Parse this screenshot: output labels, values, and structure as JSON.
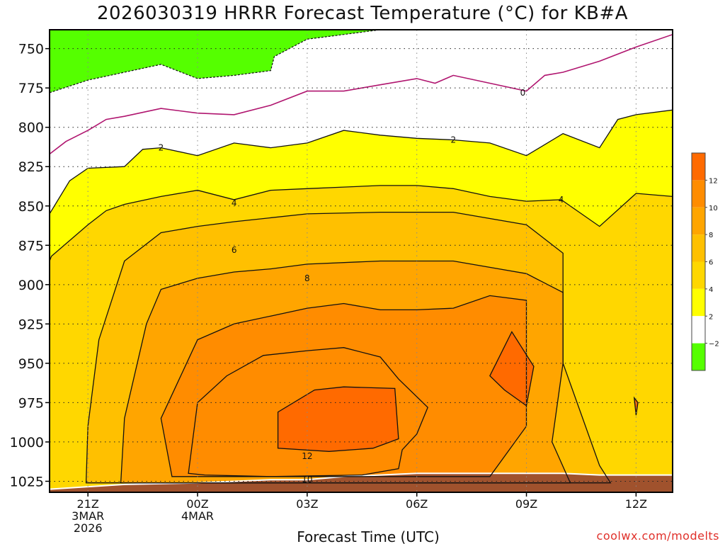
{
  "title": "2026030319 HRRR Forecast Temperature (°C) for KB#A",
  "credit": "coolwx.com/modelts",
  "chart_data": {
    "type": "contour",
    "xlabel": "Forecast Time (UTC)",
    "ylabel": "",
    "y_axis": "Pressure (mb), inverted",
    "ylim": [
      1032,
      738
    ],
    "xlim": [
      19.95,
      37.0
    ],
    "x_ticks": [
      {
        "x": 21,
        "line1": "21Z",
        "line2": "3MAR",
        "line3": "2026"
      },
      {
        "x": 24,
        "line1": "00Z",
        "line2": "4MAR",
        "line3": ""
      },
      {
        "x": 27,
        "line1": "03Z",
        "line2": "",
        "line3": ""
      },
      {
        "x": 30,
        "line1": "06Z",
        "line2": "",
        "line3": ""
      },
      {
        "x": 33,
        "line1": "09Z",
        "line2": "",
        "line3": ""
      },
      {
        "x": 36,
        "line1": "12Z",
        "line2": "",
        "line3": ""
      }
    ],
    "y_ticks": [
      750,
      775,
      800,
      825,
      850,
      875,
      900,
      925,
      950,
      975,
      1000,
      1025
    ],
    "grid": true,
    "colorbar": {
      "placement": "right",
      "bins": [
        {
          "range": "< -2",
          "color": "#55ff00"
        },
        {
          "range": "-2 to 2",
          "color": "#ffffff"
        },
        {
          "range": "2 to 4",
          "color": "#ffff00"
        },
        {
          "range": "4 to 6",
          "color": "#ffd700"
        },
        {
          "range": "6 to 8",
          "color": "#ffc000"
        },
        {
          "range": "8 to 10",
          "color": "#ffa500"
        },
        {
          "range": "10 to 12",
          "color": "#ff8c00"
        },
        {
          "range": "> 12",
          "color": "#ff6a00"
        }
      ],
      "tick_labels": [
        "−2",
        "2",
        "4",
        "6",
        "8",
        "10",
        "12"
      ]
    },
    "ground_color": "#a0522d",
    "contour_labels": [
      {
        "value": "0",
        "x": 32.9,
        "p": 778
      },
      {
        "value": "2",
        "x": 23.0,
        "p": 813
      },
      {
        "value": "2",
        "x": 31.0,
        "p": 808
      },
      {
        "value": "4",
        "x": 25.0,
        "p": 848
      },
      {
        "value": "4",
        "x": 33.95,
        "p": 846
      },
      {
        "value": "6",
        "x": 25.0,
        "p": 878
      },
      {
        "value": "8",
        "x": 27.0,
        "p": 896
      },
      {
        "value": "10",
        "x": 27.0,
        "p": 1024
      },
      {
        "value": "12",
        "x": 27.0,
        "p": 1009
      }
    ],
    "isotherms": {
      "minus2": [
        [
          19.95,
          778
        ],
        [
          21,
          770
        ],
        [
          22,
          765
        ],
        [
          23,
          760
        ],
        [
          24,
          769
        ],
        [
          25,
          767
        ],
        [
          26,
          764
        ],
        [
          26.1,
          755
        ],
        [
          27,
          744
        ],
        [
          28,
          741
        ],
        [
          29,
          737
        ],
        [
          30,
          735
        ],
        [
          31,
          735
        ],
        [
          32,
          735
        ],
        [
          33,
          735
        ],
        [
          34,
          735
        ],
        [
          35,
          735
        ],
        [
          36,
          735
        ],
        [
          37,
          735
        ]
      ],
      "zero": [
        [
          19.95,
          817
        ],
        [
          20.4,
          809
        ],
        [
          21,
          802
        ],
        [
          21.5,
          795
        ],
        [
          22,
          793
        ],
        [
          23,
          788
        ],
        [
          24,
          791
        ],
        [
          25,
          792
        ],
        [
          26,
          786
        ],
        [
          27,
          777
        ],
        [
          28,
          777
        ],
        [
          29,
          773
        ],
        [
          30,
          769
        ],
        [
          30.5,
          772
        ],
        [
          31,
          767
        ],
        [
          32,
          772
        ],
        [
          33,
          777
        ],
        [
          33.5,
          767
        ],
        [
          34,
          765
        ],
        [
          35,
          758
        ],
        [
          36,
          749
        ],
        [
          37,
          741
        ]
      ],
      "two": [
        [
          19.95,
          855
        ],
        [
          20.5,
          834
        ],
        [
          21,
          826
        ],
        [
          22,
          825
        ],
        [
          22.5,
          814
        ],
        [
          23,
          813
        ],
        [
          24,
          818
        ],
        [
          25,
          810
        ],
        [
          26,
          813
        ],
        [
          27,
          810
        ],
        [
          28,
          802
        ],
        [
          29,
          805
        ],
        [
          30,
          807
        ],
        [
          31,
          808
        ],
        [
          32,
          810
        ],
        [
          33,
          818
        ],
        [
          34,
          804
        ],
        [
          35,
          813
        ],
        [
          35.5,
          795
        ],
        [
          36,
          792
        ],
        [
          37,
          789
        ]
      ],
      "four": [
        [
          19.95,
          885
        ],
        [
          20,
          882
        ],
        [
          21,
          862
        ],
        [
          21.5,
          853
        ],
        [
          22,
          849
        ],
        [
          23,
          844
        ],
        [
          24,
          840
        ],
        [
          25,
          846
        ],
        [
          26,
          840
        ],
        [
          27,
          839
        ],
        [
          28,
          838
        ],
        [
          29,
          837
        ],
        [
          30,
          837
        ],
        [
          31,
          839
        ],
        [
          32,
          844
        ],
        [
          33,
          847
        ],
        [
          33.95,
          846
        ],
        [
          35,
          863
        ],
        [
          36,
          842
        ],
        [
          37,
          844
        ]
      ]
    },
    "ground_line": [
      [
        19.95,
        1030
      ],
      [
        22,
        1027
      ],
      [
        24,
        1026
      ],
      [
        26,
        1024
      ],
      [
        27,
        1024
      ],
      [
        28,
        1022
      ],
      [
        29,
        1021
      ],
      [
        30,
        1020
      ],
      [
        31,
        1020
      ],
      [
        32,
        1020
      ],
      [
        33,
        1020
      ],
      [
        34,
        1020
      ],
      [
        35,
        1021
      ],
      [
        36,
        1021
      ],
      [
        37,
        1021
      ]
    ],
    "closed_contours": [
      {
        "value": 6,
        "pts": [
          [
            20.95,
            1026
          ],
          [
            21,
            990
          ],
          [
            21.3,
            935
          ],
          [
            22,
            885
          ],
          [
            23,
            867
          ],
          [
            24,
            863
          ],
          [
            25,
            860
          ],
          [
            27,
            855
          ],
          [
            29,
            854
          ],
          [
            31,
            854
          ],
          [
            33,
            862
          ],
          [
            34,
            880
          ],
          [
            34,
            950
          ],
          [
            35,
            1015
          ],
          [
            35.3,
            1026
          ]
        ]
      },
      {
        "value": 8,
        "pts": [
          [
            21.9,
            1026
          ],
          [
            22,
            985
          ],
          [
            22.6,
            925
          ],
          [
            23,
            903
          ],
          [
            24,
            896
          ],
          [
            25,
            892
          ],
          [
            26,
            890
          ],
          [
            27,
            887
          ],
          [
            29,
            885
          ],
          [
            31,
            885
          ],
          [
            33,
            893
          ],
          [
            34,
            905
          ],
          [
            34,
            950
          ],
          [
            33.7,
            1000
          ],
          [
            34.2,
            1026
          ]
        ]
      },
      {
        "value": 10,
        "pts": [
          [
            23.3,
            1022
          ],
          [
            23,
            985
          ],
          [
            24,
            935
          ],
          [
            25,
            925
          ],
          [
            26,
            920
          ],
          [
            27,
            915
          ],
          [
            28,
            912
          ],
          [
            29,
            916
          ],
          [
            30,
            916
          ],
          [
            31,
            915
          ],
          [
            32,
            907
          ],
          [
            33,
            910
          ],
          [
            33,
            990
          ],
          [
            32,
            1022
          ]
        ]
      },
      {
        "value": 10,
        "pts": [
          [
            23.75,
            1020
          ],
          [
            24,
            975
          ],
          [
            24.8,
            958
          ],
          [
            25.8,
            945
          ],
          [
            27,
            942
          ],
          [
            28,
            940
          ],
          [
            29,
            946
          ],
          [
            29.5,
            960
          ],
          [
            30.3,
            978
          ],
          [
            30,
            995
          ],
          [
            29.6,
            1005
          ],
          [
            29.5,
            1017
          ],
          [
            28.5,
            1021
          ],
          [
            26,
            1022
          ],
          [
            24.2,
            1021
          ]
        ]
      },
      {
        "value": 12,
        "pts": [
          [
            26.2,
            1004
          ],
          [
            26.2,
            981
          ],
          [
            27.2,
            967
          ],
          [
            28,
            965
          ],
          [
            29.4,
            966
          ],
          [
            29.5,
            998
          ],
          [
            28.8,
            1004
          ],
          [
            27.6,
            1006
          ]
        ]
      },
      {
        "value": 12,
        "pts": [
          [
            32,
            958
          ],
          [
            32.6,
            930
          ],
          [
            33.2,
            952
          ],
          [
            33,
            977
          ],
          [
            32.4,
            967
          ]
        ]
      },
      {
        "value": 12,
        "pts": [
          [
            35.95,
            972
          ],
          [
            36.05,
            975
          ],
          [
            36,
            983
          ]
        ]
      }
    ]
  }
}
